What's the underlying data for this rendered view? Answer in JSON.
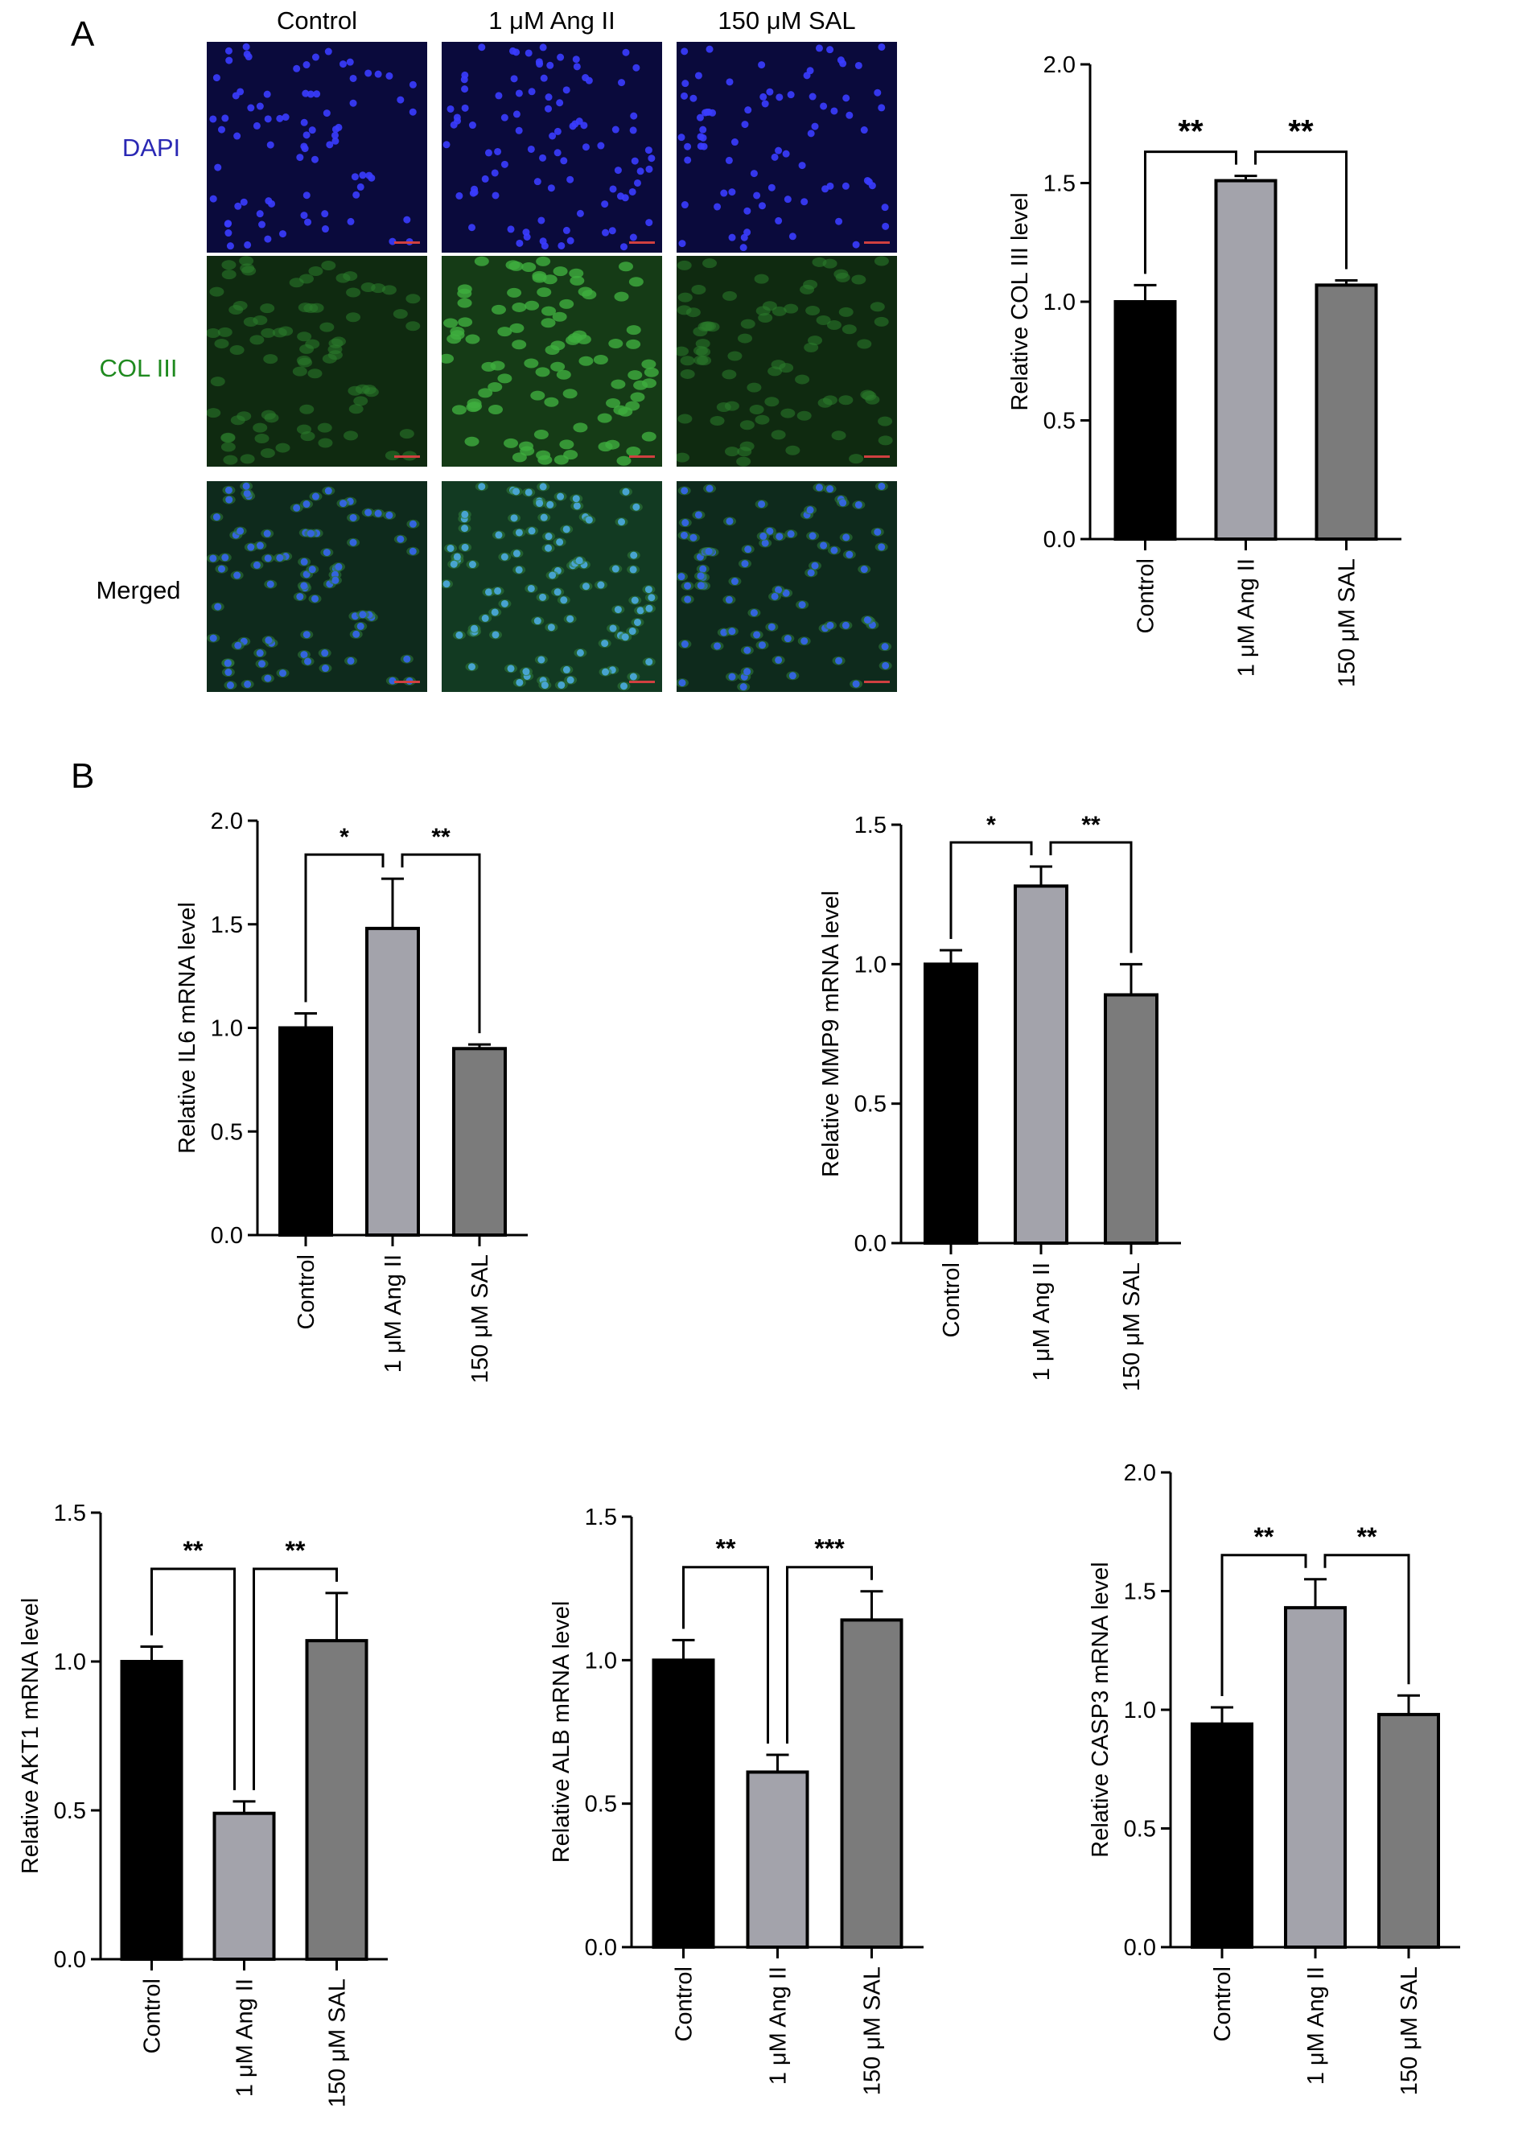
{
  "panels": {
    "a": "A",
    "b": "B"
  },
  "microscopy": {
    "columns": [
      "Control",
      "1 μM Ang II",
      "150 μM SAL"
    ],
    "rows": [
      {
        "label": "DAPI",
        "color": "#2a28b4"
      },
      {
        "label": "COL III",
        "color": "#1f8a1f"
      },
      {
        "label": "Merged",
        "color": "#000000"
      }
    ]
  },
  "colors": {
    "control": "#000000",
    "ang": "#a3a3ab",
    "sal": "#7b7b7b",
    "dapi": "#2a28b4",
    "col": "#1f8a1f"
  },
  "chart_data": [
    {
      "type": "bar",
      "categories": [
        "Control",
        "1 μM Ang II",
        "150 μM SAL"
      ],
      "values": [
        1.0,
        1.51,
        1.07
      ],
      "errors": [
        0.07,
        0.02,
        0.02
      ],
      "ylabel": "Relative COL III level",
      "ylim": [
        0,
        2.0
      ],
      "yticks": [
        "0.0",
        "0.5",
        "1.0",
        "1.5",
        "2.0"
      ],
      "significance": [
        {
          "from": 0,
          "to": 1,
          "label": "**"
        },
        {
          "from": 1,
          "to": 2,
          "label": "**"
        }
      ]
    },
    {
      "type": "bar",
      "categories": [
        "Control",
        "1 μM Ang II",
        "150 μM SAL"
      ],
      "values": [
        1.0,
        1.48,
        0.9
      ],
      "errors": [
        0.07,
        0.24,
        0.02
      ],
      "ylabel": "Relative IL6 mRNA level",
      "ylim": [
        0,
        2.0
      ],
      "yticks": [
        "0.0",
        "0.5",
        "1.0",
        "1.5",
        "2.0"
      ],
      "significance": [
        {
          "from": 0,
          "to": 1,
          "label": "*"
        },
        {
          "from": 1,
          "to": 2,
          "label": "**"
        }
      ]
    },
    {
      "type": "bar",
      "categories": [
        "Control",
        "1 μM Ang II",
        "150 μM SAL"
      ],
      "values": [
        1.0,
        1.28,
        0.89
      ],
      "errors": [
        0.05,
        0.07,
        0.11
      ],
      "ylabel": "Relative MMP9 mRNA level",
      "ylim": [
        0,
        1.5
      ],
      "yticks": [
        "0.0",
        "0.5",
        "1.0",
        "1.5"
      ],
      "significance": [
        {
          "from": 0,
          "to": 1,
          "label": "*"
        },
        {
          "from": 1,
          "to": 2,
          "label": "**"
        }
      ]
    },
    {
      "type": "bar",
      "categories": [
        "Control",
        "1 μM Ang II",
        "150 μM SAL"
      ],
      "values": [
        1.0,
        0.49,
        1.07
      ],
      "errors": [
        0.05,
        0.04,
        0.16
      ],
      "ylabel": "Relative AKT1 mRNA level",
      "ylim": [
        0,
        1.5
      ],
      "yticks": [
        "0.0",
        "0.5",
        "1.0",
        "1.5"
      ],
      "significance": [
        {
          "from": 0,
          "to": 1,
          "label": "**"
        },
        {
          "from": 1,
          "to": 2,
          "label": "**"
        }
      ]
    },
    {
      "type": "bar",
      "categories": [
        "Control",
        "1 μM Ang II",
        "150 μM SAL"
      ],
      "values": [
        1.0,
        0.61,
        1.14
      ],
      "errors": [
        0.07,
        0.06,
        0.1
      ],
      "ylabel": "Relative ALB mRNA level",
      "ylim": [
        0,
        1.5
      ],
      "yticks": [
        "0.0",
        "0.5",
        "1.0",
        "1.5"
      ],
      "significance": [
        {
          "from": 0,
          "to": 1,
          "label": "**"
        },
        {
          "from": 1,
          "to": 2,
          "label": "***"
        }
      ]
    },
    {
      "type": "bar",
      "categories": [
        "Control",
        "1 μM Ang II",
        "150 μM SAL"
      ],
      "values": [
        0.94,
        1.43,
        0.98
      ],
      "errors": [
        0.07,
        0.12,
        0.08
      ],
      "ylabel": "Relative CASP3 mRNA level",
      "ylim": [
        0,
        2.0
      ],
      "yticks": [
        "0.0",
        "0.5",
        "1.0",
        "1.5",
        "2.0"
      ],
      "significance": [
        {
          "from": 0,
          "to": 1,
          "label": "**"
        },
        {
          "from": 1,
          "to": 2,
          "label": "**"
        }
      ]
    }
  ]
}
